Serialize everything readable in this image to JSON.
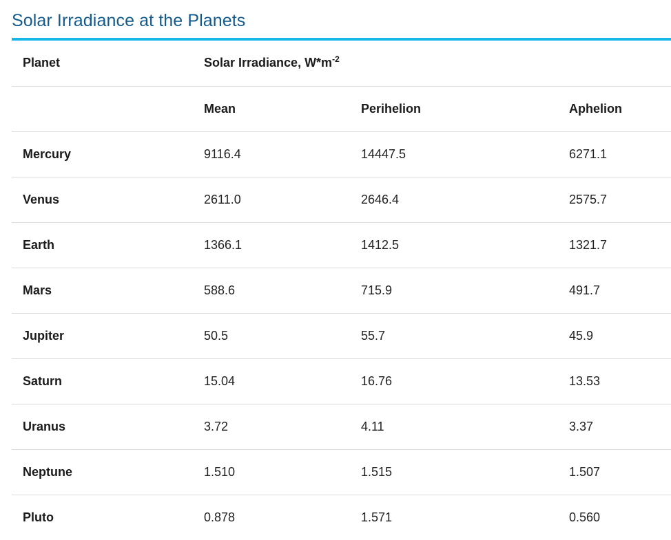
{
  "title": "Solar Irradiance at the Planets",
  "table": {
    "header": {
      "planet": "Planet",
      "irradiance": "Solar Irradiance, W*m",
      "irradiance_exponent": "-2"
    },
    "subheader": {
      "mean": "Mean",
      "perihelion": "Perihelion",
      "aphelion": "Aphelion"
    },
    "rows": [
      {
        "planet": "Mercury",
        "mean": "9116.4",
        "perihelion": "14447.5",
        "aphelion": "6271.1"
      },
      {
        "planet": "Venus",
        "mean": "2611.0",
        "perihelion": "2646.4",
        "aphelion": "2575.7"
      },
      {
        "planet": "Earth",
        "mean": "1366.1",
        "perihelion": "1412.5",
        "aphelion": "1321.7"
      },
      {
        "planet": "Mars",
        "mean": "588.6",
        "perihelion": "715.9",
        "aphelion": "491.7"
      },
      {
        "planet": "Jupiter",
        "mean": "50.5",
        "perihelion": "55.7",
        "aphelion": "45.9"
      },
      {
        "planet": "Saturn",
        "mean": "15.04",
        "perihelion": "16.76",
        "aphelion": "13.53"
      },
      {
        "planet": "Uranus",
        "mean": "3.72",
        "perihelion": "4.11",
        "aphelion": "3.37"
      },
      {
        "planet": "Neptune",
        "mean": "1.510",
        "perihelion": "1.515",
        "aphelion": "1.507"
      },
      {
        "planet": "Pluto",
        "mean": "0.878",
        "perihelion": "1.571",
        "aphelion": "0.560"
      }
    ]
  },
  "colors": {
    "title": "#145b8d",
    "accent_rule": "#15b7ea",
    "row_divider": "#dcdcdc"
  }
}
